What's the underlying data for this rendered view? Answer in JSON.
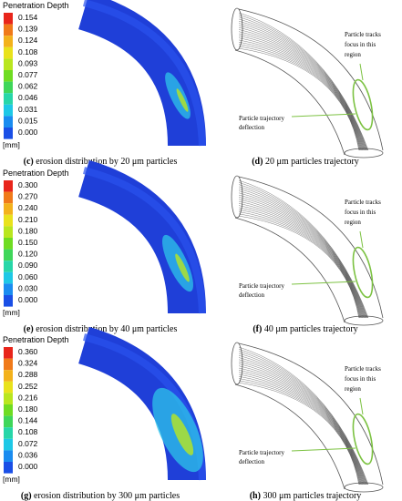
{
  "panels": [
    {
      "legend_title": "Penetration Depth",
      "legend_ticks": [
        "0.154",
        "0.139",
        "0.124",
        "0.108",
        "0.093",
        "0.077",
        "0.062",
        "0.046",
        "0.031",
        "0.015",
        "0.000"
      ],
      "unit": "[mm]",
      "caption_label": "(c)",
      "caption": "erosion distribution by 20 μm particles",
      "trajectory_label": "(d)",
      "trajectory_caption": "20 μm particles trajectory",
      "focus_note": [
        "Particle tracks",
        "focus in this",
        "region"
      ],
      "deflection_note": [
        "Particle trajectory",
        "deflection"
      ]
    },
    {
      "legend_title": "Penetration Depth",
      "legend_ticks": [
        "0.300",
        "0.270",
        "0.240",
        "0.210",
        "0.180",
        "0.150",
        "0.120",
        "0.090",
        "0.060",
        "0.030",
        "0.000"
      ],
      "unit": "[mm]",
      "caption_label": "(e)",
      "caption": "erosion distribution by 40 μm particles",
      "trajectory_label": "(f)",
      "trajectory_caption": "40 μm particles trajectory",
      "focus_note": [
        "Particle tracks",
        "focus in this",
        "region"
      ],
      "deflection_note": [
        "Particle trajectory",
        "deflection"
      ]
    },
    {
      "legend_title": "Penetration Depth",
      "legend_ticks": [
        "0.360",
        "0.324",
        "0.288",
        "0.252",
        "0.216",
        "0.180",
        "0.144",
        "0.108",
        "0.072",
        "0.036",
        "0.000"
      ],
      "unit": "[mm]",
      "caption_label": "(g)",
      "caption": "erosion distribution by 300 μm particles",
      "trajectory_label": "(h)",
      "trajectory_caption": "300 μm particles trajectory",
      "focus_note": [
        "Particle tracks",
        "focus in this",
        "region"
      ],
      "deflection_note": [
        "Particle trajectory",
        "deflection"
      ]
    }
  ]
}
